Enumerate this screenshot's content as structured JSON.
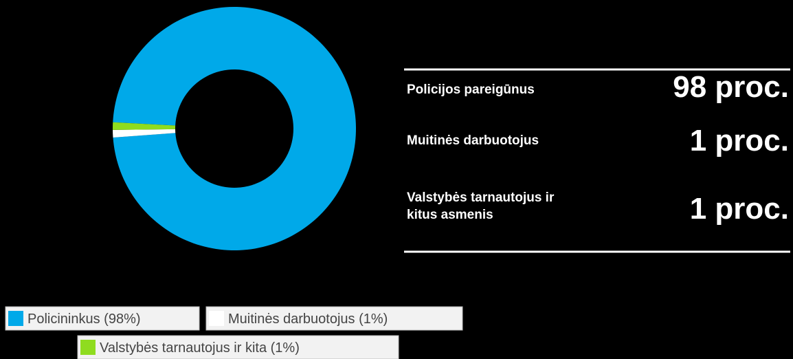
{
  "chart_data": {
    "type": "pie",
    "donut": true,
    "categories": [
      "Policininkus (98%)",
      "Muitinės darbuotojus (1%)",
      "Valstybės tarnautojus ir kita (1%)"
    ],
    "values": [
      98,
      1,
      1
    ],
    "colors": [
      "#00a9e9",
      "#ffffff",
      "#8fdc1f"
    ]
  },
  "summary": [
    {
      "label": "Policijos pareigūnus",
      "value": "98 proc."
    },
    {
      "label": "Muitinės darbuotojus",
      "value": "1 proc."
    },
    {
      "label": "Valstybės tarnautojus ir kitus asmenis",
      "value": "1 proc."
    }
  ]
}
